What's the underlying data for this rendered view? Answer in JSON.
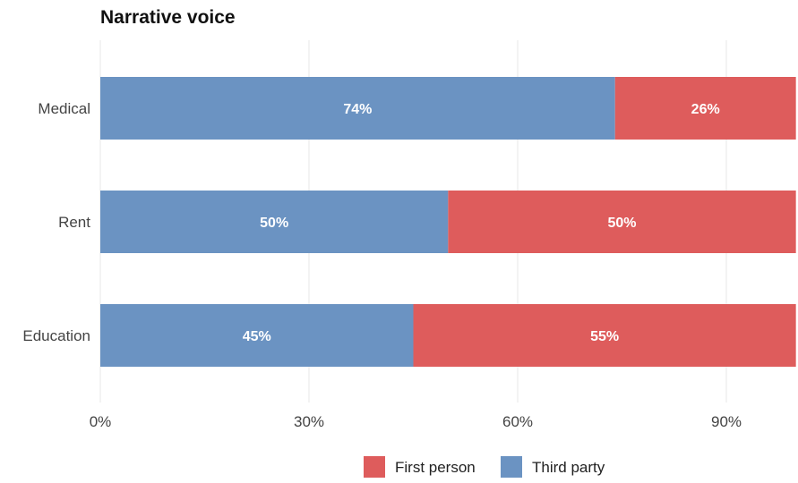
{
  "chart_data": {
    "type": "bar",
    "orientation": "horizontal",
    "stacked": true,
    "title": "Narrative voice",
    "xlabel": "",
    "ylabel": "",
    "categories": [
      "Medical",
      "Rent",
      "Education"
    ],
    "series": [
      {
        "name": "Third party",
        "values": [
          74,
          50,
          45
        ],
        "color": "#6b93c2"
      },
      {
        "name": "First person",
        "values": [
          26,
          50,
          55
        ],
        "color": "#de5c5c"
      }
    ],
    "data_labels": {
      "Third party": [
        "74%",
        "50%",
        "45%"
      ],
      "First person": [
        "26%",
        "50%",
        "55%"
      ]
    },
    "xlim": [
      0,
      100
    ],
    "xticks": [
      0,
      30,
      60,
      90
    ],
    "xtick_labels": [
      "0%",
      "30%",
      "60%",
      "90%"
    ],
    "grid": true,
    "legend": {
      "placement": "bottom",
      "entries": [
        {
          "label": "First person",
          "color": "#de5c5c"
        },
        {
          "label": "Third party",
          "color": "#6b93c2"
        }
      ]
    }
  }
}
